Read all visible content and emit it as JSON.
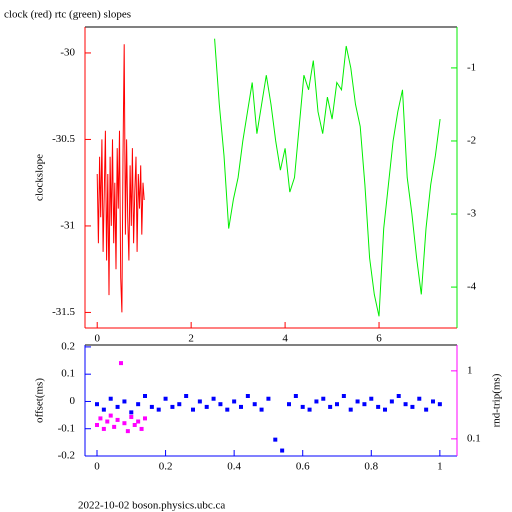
{
  "chart_data": [
    {
      "type": "line",
      "title": "clock (red) rtc (green) slopes",
      "ylabel": "clockslope",
      "xlim": [
        -0.26,
        7.66
      ],
      "xticks": [
        0,
        2,
        4,
        6
      ],
      "ylim": [
        -31.59,
        -29.85
      ],
      "yticks": [
        -31.5,
        -31,
        -30.5,
        -30
      ],
      "y2lim": [
        -4.56,
        -0.44
      ],
      "y2ticks": [
        -4,
        -3,
        -2,
        -1
      ],
      "series": [
        {
          "color": "#ff0000",
          "x": [
            0,
            0.025,
            0.05,
            0.075,
            0.1,
            0.125,
            0.15,
            0.175,
            0.2,
            0.225,
            0.25,
            0.275,
            0.3,
            0.325,
            0.35,
            0.375,
            0.4,
            0.425,
            0.45,
            0.475,
            0.5,
            0.525,
            0.55,
            0.575,
            0.6,
            0.625,
            0.65,
            0.675,
            0.7,
            0.725,
            0.75,
            0.775,
            0.8,
            0.825,
            0.85,
            0.875,
            0.9,
            0.925,
            0.95,
            0.975,
            1
          ],
          "values": [
            -30.7,
            -31.1,
            -30.6,
            -30.95,
            -30.5,
            -31.15,
            -30.8,
            -30.45,
            -31.2,
            -30.7,
            -31.4,
            -30.6,
            -31.0,
            -30.5,
            -31.1,
            -30.75,
            -31.25,
            -30.55,
            -30.9,
            -30.45,
            -31.3,
            -31.5,
            -30.6,
            -29.95,
            -31.05,
            -30.5,
            -30.95,
            -31.2,
            -30.65,
            -31.0,
            -30.55,
            -31.1,
            -30.8,
            -30.6,
            -31.15,
            -30.7,
            -30.9,
            -30.65,
            -31.05,
            -30.75,
            -30.85
          ]
        },
        {
          "color": "#00ee00",
          "axis": "y2",
          "x": [
            2.5,
            2.6,
            2.7,
            2.8,
            2.9,
            3.0,
            3.1,
            3.2,
            3.3,
            3.4,
            3.5,
            3.6,
            3.7,
            3.8,
            3.9,
            4.0,
            4.1,
            4.2,
            4.3,
            4.4,
            4.5,
            4.6,
            4.7,
            4.8,
            4.9,
            5.0,
            5.1,
            5.2,
            5.3,
            5.4,
            5.5,
            5.6,
            5.7,
            5.8,
            5.9,
            6.0,
            6.1,
            6.2,
            6.3,
            6.4,
            6.5,
            6.6,
            6.7,
            6.8,
            6.9,
            7.0,
            7.1,
            7.2,
            7.3
          ],
          "values": [
            -0.6,
            -1.5,
            -2.2,
            -3.2,
            -2.8,
            -2.5,
            -2.0,
            -1.6,
            -1.2,
            -1.9,
            -1.5,
            -1.1,
            -1.5,
            -2.0,
            -2.4,
            -2.1,
            -2.7,
            -2.5,
            -1.8,
            -1.1,
            -1.3,
            -0.9,
            -1.6,
            -1.9,
            -1.4,
            -1.7,
            -1.2,
            -1.3,
            -0.7,
            -1.0,
            -1.5,
            -1.8,
            -2.6,
            -3.6,
            -4.1,
            -4.4,
            -3.2,
            -2.6,
            -2.0,
            -1.6,
            -1.3,
            -2.5,
            -3.0,
            -3.6,
            -4.1,
            -3.2,
            -2.6,
            -2.2,
            -1.7
          ]
        }
      ]
    },
    {
      "type": "scatter",
      "ylabel": "offset(ms)",
      "y2label": "rnd-trip(ms)",
      "footer": "2022-10-02  boson.physics.ubc.ca",
      "xlim": [
        -0.035,
        1.05
      ],
      "xticks": [
        0,
        0.2,
        0.4,
        0.6,
        0.8,
        1
      ],
      "ylim": [
        -0.2,
        0.207
      ],
      "yticks": [
        -0.2,
        -0.1,
        0,
        0.1,
        0.2
      ],
      "y2lim": [
        0.056,
        2.4
      ],
      "y2ticks": [
        0.1,
        1
      ],
      "y2log": true,
      "series": [
        {
          "color": "#0000ff",
          "x": [
            0,
            0.02,
            0.04,
            0.06,
            0.08,
            0.1,
            0.12,
            0.14,
            0.16,
            0.18,
            0.2,
            0.22,
            0.24,
            0.26,
            0.28,
            0.3,
            0.32,
            0.34,
            0.36,
            0.38,
            0.4,
            0.42,
            0.44,
            0.46,
            0.48,
            0.5,
            0.52,
            0.54,
            0.56,
            0.58,
            0.6,
            0.62,
            0.64,
            0.66,
            0.68,
            0.7,
            0.72,
            0.74,
            0.76,
            0.78,
            0.8,
            0.82,
            0.84,
            0.86,
            0.88,
            0.9,
            0.92,
            0.94,
            0.96,
            0.98,
            1
          ],
          "values": [
            -0.01,
            -0.03,
            0.01,
            -0.02,
            0.0,
            -0.04,
            -0.01,
            0.02,
            -0.02,
            -0.03,
            0.01,
            -0.02,
            -0.01,
            0.02,
            -0.03,
            0.0,
            -0.02,
            0.01,
            -0.01,
            -0.03,
            0.0,
            -0.02,
            0.02,
            -0.01,
            -0.03,
            0.01,
            -0.14,
            -0.18,
            -0.01,
            0.02,
            -0.02,
            -0.03,
            0.0,
            0.01,
            -0.02,
            -0.01,
            0.02,
            -0.03,
            0.0,
            -0.01,
            0.01,
            -0.02,
            -0.03,
            0.0,
            0.02,
            -0.01,
            -0.02,
            0.01,
            -0.03,
            0.0,
            -0.01
          ]
        },
        {
          "color": "#ff00ff",
          "axis": "y2",
          "x": [
            0,
            0.01,
            0.02,
            0.03,
            0.04,
            0.05,
            0.06,
            0.07,
            0.08,
            0.09,
            0.1,
            0.11,
            0.12,
            0.13,
            0.14
          ],
          "values": [
            0.16,
            0.2,
            0.14,
            0.18,
            0.22,
            0.15,
            0.19,
            1.3,
            0.17,
            0.13,
            0.21,
            0.16,
            0.18,
            0.14,
            0.2
          ]
        }
      ]
    }
  ]
}
